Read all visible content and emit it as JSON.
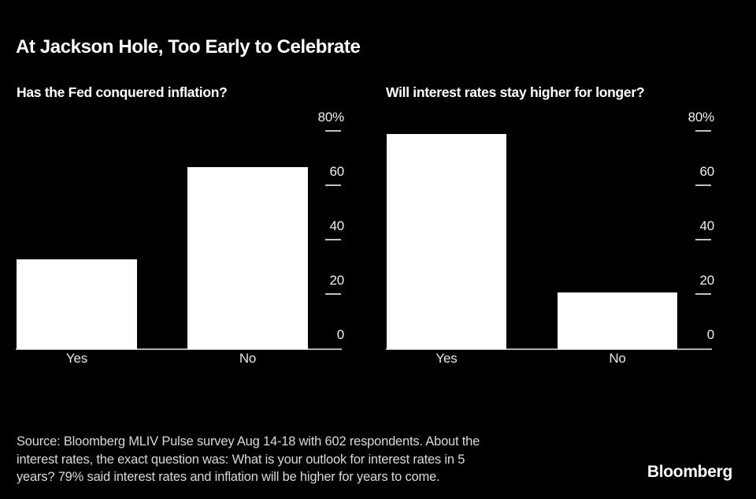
{
  "title": "At Jackson Hole, Too Early to Celebrate",
  "y_axis": {
    "unit": "%",
    "ticks": [
      {
        "label": "80%",
        "value": 80
      },
      {
        "label": "60",
        "value": 60
      },
      {
        "label": "40",
        "value": 40
      },
      {
        "label": "20",
        "value": 20
      },
      {
        "label": "0",
        "value": 0
      }
    ]
  },
  "chart_data": [
    {
      "type": "bar",
      "title": "Has the Fed conquered inflation?",
      "categories": [
        "Yes",
        "No"
      ],
      "values": [
        33,
        67
      ],
      "unit": "%",
      "ylim": [
        0,
        80
      ],
      "ytick_labels": [
        "80%",
        "60",
        "40",
        "20",
        "0"
      ],
      "axis_position": "right",
      "grid": false,
      "bar_color": "#ffffff"
    },
    {
      "type": "bar",
      "title": "Will interest rates stay higher for longer?",
      "categories": [
        "Yes",
        "No"
      ],
      "values": [
        79,
        21
      ],
      "unit": "%",
      "ylim": [
        0,
        80
      ],
      "ytick_labels": [
        "80%",
        "60",
        "40",
        "20",
        "0"
      ],
      "axis_position": "right",
      "grid": false,
      "bar_color": "#ffffff"
    }
  ],
  "footer": {
    "source_lines": [
      "Source: Bloomberg MLIV Pulse survey Aug 14-18 with 602 respondents. About the",
      "interest rates, the exact question was: What is your outlook for interest rates in 5",
      "years? 79% said interest rates and inflation will be higher for years to come."
    ],
    "logo_text": "Bloomberg"
  },
  "colors": {
    "background": "#000000",
    "bar": "#ffffff",
    "axis_line": "#b0b0b0",
    "tick_dash": "#c0c0c0",
    "title_text": "#ffffff",
    "axis_label_text": "#f0f0f0",
    "category_label_text": "#e6e6e6",
    "source_text": "#d9d9d9"
  }
}
